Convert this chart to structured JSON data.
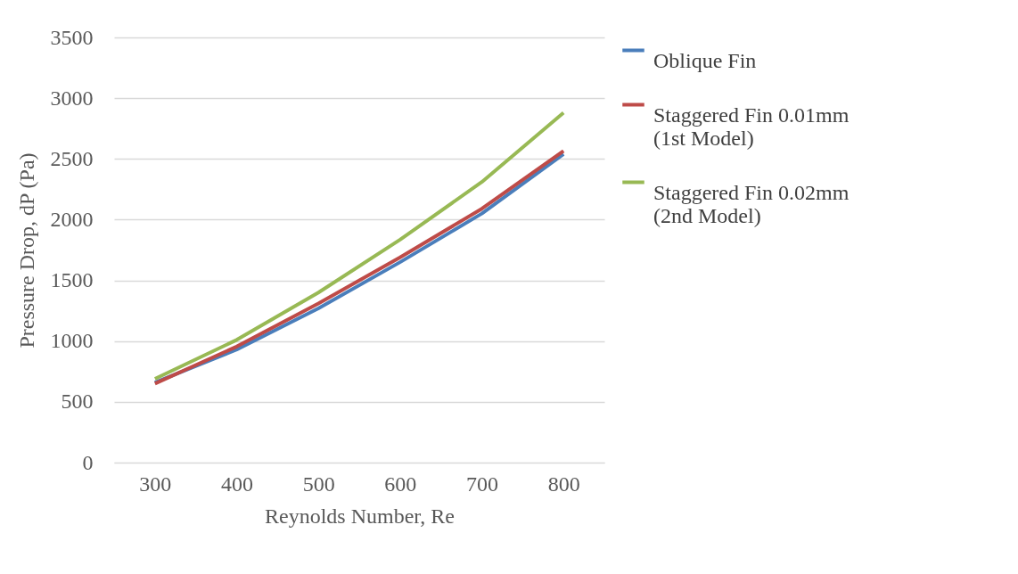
{
  "chart_data": {
    "type": "line",
    "xlabel": "Reynolds Number, Re",
    "ylabel": "Pressure Drop, dP (Pa)",
    "categories": [
      "300",
      "400",
      "500",
      "600",
      "700",
      "800"
    ],
    "series": [
      {
        "name": "Oblique Fin",
        "color": "#4a7ebb",
        "values": [
          660,
          930,
          1270,
          1650,
          2050,
          2540
        ]
      },
      {
        "name": "Staggered Fin 0.01mm (1st Model)",
        "color": "#be4b48",
        "values": [
          650,
          955,
          1310,
          1690,
          2090,
          2565
        ]
      },
      {
        "name": "Staggered Fin 0.02mm (2nd Model)",
        "color": "#98b954",
        "values": [
          690,
          1010,
          1400,
          1835,
          2310,
          2880
        ]
      }
    ],
    "ylim": [
      0,
      3500
    ],
    "yticks": [
      0,
      500,
      1000,
      1500,
      2000,
      2500,
      3000,
      3500
    ],
    "grid": "y",
    "legend": "right",
    "marker": "none",
    "line_style": "solid"
  }
}
